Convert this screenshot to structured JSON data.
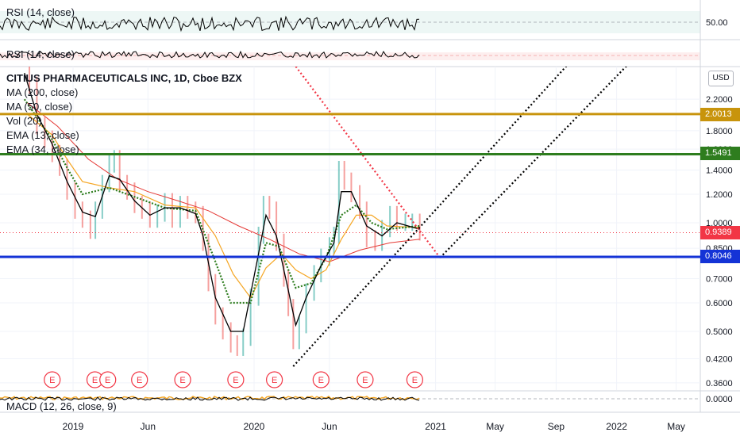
{
  "chart_data": {
    "type": "line",
    "title": "CITIUS PHARMACEUTICALS INC, 1D, Cboe BZX",
    "currency_button": "USD",
    "scale": "log",
    "y_axis_ticks": [
      "2.2000",
      "2.0000",
      "1.8000",
      "1.6000",
      "1.4000",
      "1.2000",
      "1.0000",
      "0.8500",
      "0.7000",
      "0.6000",
      "0.5000",
      "0.4200",
      "0.3600"
    ],
    "x_axis_ticks": [
      "2019",
      "Jun",
      "2020",
      "Jun",
      "2021",
      "May",
      "Sep",
      "2022",
      "May"
    ],
    "study_labels": [
      "MA (200, close)",
      "MA (50, close)",
      "Vol (20)",
      "EMA (13, close)",
      "EMA (34, close)"
    ],
    "rsi_panels": [
      {
        "label": "RSI (14, close)",
        "tick": "50.00"
      },
      {
        "label": "RSI (14, close)"
      }
    ],
    "macd_panel": {
      "label": "MACD (12, 26, close, 9)",
      "tick": "0.0000"
    },
    "horizontal_levels": [
      {
        "value": 2.0013,
        "label": "2.0013",
        "color": "#c8940c"
      },
      {
        "value": 1.5491,
        "label": "1.5491",
        "color": "#2e7d1e"
      },
      {
        "value": 0.8046,
        "label": "0.8046",
        "color": "#1433d6"
      }
    ],
    "last_price": {
      "value": 0.9389,
      "label": "0.9389",
      "color": "#f23645"
    },
    "earnings_marker": "E",
    "earnings_dates": [
      "2018-11-20",
      "2019-02-14",
      "2019-03-12",
      "2019-05-15",
      "2019-08-10",
      "2019-11-25",
      "2020-02-11",
      "2020-05-15",
      "2020-08-12",
      "2020-11-20"
    ],
    "price_series": [
      [
        "2018-09-25",
        3.0
      ],
      [
        "2018-10-05",
        2.4
      ],
      [
        "2018-10-20",
        1.85
      ],
      [
        "2018-11-05",
        1.7
      ],
      [
        "2018-11-20",
        1.55
      ],
      [
        "2018-12-05",
        1.42
      ],
      [
        "2018-12-20",
        1.22
      ],
      [
        "2019-01-05",
        1.08
      ],
      [
        "2019-01-20",
        1.02
      ],
      [
        "2019-02-05",
        0.95
      ],
      [
        "2019-02-15",
        1.08
      ],
      [
        "2019-03-01",
        1.28
      ],
      [
        "2019-03-15",
        1.45
      ],
      [
        "2019-03-25",
        1.5
      ],
      [
        "2019-04-05",
        1.28
      ],
      [
        "2019-04-20",
        1.22
      ],
      [
        "2019-05-05",
        1.12
      ],
      [
        "2019-05-20",
        1.08
      ],
      [
        "2019-06-05",
        1.02
      ],
      [
        "2019-06-20",
        1.06
      ],
      [
        "2019-07-05",
        1.14
      ],
      [
        "2019-07-20",
        1.02
      ],
      [
        "2019-08-05",
        1.12
      ],
      [
        "2019-08-20",
        1.08
      ],
      [
        "2019-09-05",
        1.05
      ],
      [
        "2019-09-20",
        0.88
      ],
      [
        "2019-10-01",
        0.68
      ],
      [
        "2019-10-15",
        0.55
      ],
      [
        "2019-10-30",
        0.5
      ],
      [
        "2019-11-15",
        0.46
      ],
      [
        "2019-11-28",
        0.45
      ],
      [
        "2019-12-10",
        0.48
      ],
      [
        "2019-12-25",
        0.62
      ],
      [
        "2020-01-10",
        0.92
      ],
      [
        "2020-01-20",
        1.12
      ],
      [
        "2020-02-01",
        1.08
      ],
      [
        "2020-02-15",
        0.88
      ],
      [
        "2020-03-01",
        0.7
      ],
      [
        "2020-03-10",
        0.58
      ],
      [
        "2020-03-20",
        0.47
      ],
      [
        "2020-04-01",
        0.52
      ],
      [
        "2020-04-15",
        0.64
      ],
      [
        "2020-05-01",
        0.72
      ],
      [
        "2020-05-15",
        0.8
      ],
      [
        "2020-06-01",
        0.86
      ],
      [
        "2020-06-10",
        0.92
      ],
      [
        "2020-06-20",
        1.4
      ],
      [
        "2020-07-01",
        1.3
      ],
      [
        "2020-07-15",
        1.2
      ],
      [
        "2020-08-01",
        1.08
      ],
      [
        "2020-08-15",
        0.9
      ],
      [
        "2020-09-01",
        0.88
      ],
      [
        "2020-09-15",
        0.96
      ],
      [
        "2020-10-01",
        1.05
      ],
      [
        "2020-10-15",
        1.0
      ],
      [
        "2020-11-01",
        1.0
      ],
      [
        "2020-11-15",
        1.0
      ],
      [
        "2020-11-30",
        0.94
      ]
    ],
    "ema13_series": [
      [
        "2018-09-25",
        2.6
      ],
      [
        "2018-10-20",
        2.0
      ],
      [
        "2018-11-20",
        1.65
      ],
      [
        "2018-12-20",
        1.3
      ],
      [
        "2019-01-20",
        1.07
      ],
      [
        "2019-02-15",
        1.04
      ],
      [
        "2019-03-15",
        1.35
      ],
      [
        "2019-04-05",
        1.32
      ],
      [
        "2019-05-05",
        1.15
      ],
      [
        "2019-06-05",
        1.05
      ],
      [
        "2019-07-05",
        1.1
      ],
      [
        "2019-08-05",
        1.1
      ],
      [
        "2019-09-05",
        1.06
      ],
      [
        "2019-09-20",
        0.92
      ],
      [
        "2019-10-15",
        0.62
      ],
      [
        "2019-11-15",
        0.5
      ],
      [
        "2019-12-10",
        0.5
      ],
      [
        "2020-01-10",
        0.82
      ],
      [
        "2020-01-25",
        1.05
      ],
      [
        "2020-02-15",
        0.92
      ],
      [
        "2020-03-10",
        0.65
      ],
      [
        "2020-03-25",
        0.52
      ],
      [
        "2020-04-15",
        0.62
      ],
      [
        "2020-05-15",
        0.76
      ],
      [
        "2020-06-10",
        0.88
      ],
      [
        "2020-06-25",
        1.22
      ],
      [
        "2020-07-15",
        1.22
      ],
      [
        "2020-08-15",
        0.98
      ],
      [
        "2020-09-15",
        0.92
      ],
      [
        "2020-10-15",
        1.0
      ],
      [
        "2020-11-30",
        0.96
      ]
    ],
    "ema34_series": [
      [
        "2018-09-25",
        2.2
      ],
      [
        "2018-11-20",
        1.7
      ],
      [
        "2018-12-20",
        1.42
      ],
      [
        "2019-01-20",
        1.2
      ],
      [
        "2019-03-15",
        1.25
      ],
      [
        "2019-05-05",
        1.18
      ],
      [
        "2019-07-05",
        1.1
      ],
      [
        "2019-09-05",
        1.08
      ],
      [
        "2019-10-15",
        0.78
      ],
      [
        "2019-11-15",
        0.6
      ],
      [
        "2019-12-25",
        0.6
      ],
      [
        "2020-01-25",
        0.88
      ],
      [
        "2020-02-20",
        0.86
      ],
      [
        "2020-03-25",
        0.66
      ],
      [
        "2020-04-25",
        0.68
      ],
      [
        "2020-05-25",
        0.8
      ],
      [
        "2020-06-25",
        1.05
      ],
      [
        "2020-07-25",
        1.12
      ],
      [
        "2020-08-25",
        1.0
      ],
      [
        "2020-09-25",
        0.96
      ],
      [
        "2020-11-30",
        0.98
      ]
    ],
    "ma50_series": [
      [
        "2018-10-01",
        2.0
      ],
      [
        "2018-11-20",
        1.75
      ],
      [
        "2018-12-20",
        1.5
      ],
      [
        "2019-01-20",
        1.3
      ],
      [
        "2019-03-15",
        1.25
      ],
      [
        "2019-05-05",
        1.22
      ],
      [
        "2019-07-05",
        1.12
      ],
      [
        "2019-09-05",
        1.1
      ],
      [
        "2019-10-15",
        0.92
      ],
      [
        "2019-11-20",
        0.72
      ],
      [
        "2019-12-25",
        0.62
      ],
      [
        "2020-01-25",
        0.75
      ],
      [
        "2020-02-25",
        0.82
      ],
      [
        "2020-03-25",
        0.74
      ],
      [
        "2020-04-25",
        0.7
      ],
      [
        "2020-05-25",
        0.74
      ],
      [
        "2020-06-25",
        0.9
      ],
      [
        "2020-07-25",
        1.05
      ],
      [
        "2020-08-25",
        1.05
      ],
      [
        "2020-09-25",
        0.98
      ],
      [
        "2020-11-30",
        0.97
      ]
    ],
    "ma200_series": [
      [
        "2018-10-01",
        2.15
      ],
      [
        "2018-12-01",
        1.85
      ],
      [
        "2019-02-01",
        1.5
      ],
      [
        "2019-04-01",
        1.32
      ],
      [
        "2019-06-01",
        1.22
      ],
      [
        "2019-08-01",
        1.15
      ],
      [
        "2019-10-01",
        1.08
      ],
      [
        "2019-12-01",
        0.98
      ],
      [
        "2020-02-01",
        0.9
      ],
      [
        "2020-04-01",
        0.82
      ],
      [
        "2020-06-01",
        0.78
      ],
      [
        "2020-08-01",
        0.84
      ],
      [
        "2020-10-01",
        0.88
      ],
      [
        "2020-11-30",
        0.9
      ]
    ],
    "trend_lines": [
      {
        "name": "falling-red-dotted",
        "color": "#f23645",
        "points": [
          [
            "2020-03-01",
            3.0
          ],
          [
            "2021-01-10",
            0.8
          ]
        ]
      },
      {
        "name": "rising-black-dotted-1",
        "color": "#000000",
        "points": [
          [
            "2020-03-20",
            0.4
          ],
          [
            "2021-10-20",
            3.0
          ]
        ]
      },
      {
        "name": "rising-black-dotted-2",
        "color": "#000000",
        "points": [
          [
            "2021-01-10",
            0.8
          ],
          [
            "2022-02-20",
            3.0
          ]
        ]
      }
    ]
  }
}
